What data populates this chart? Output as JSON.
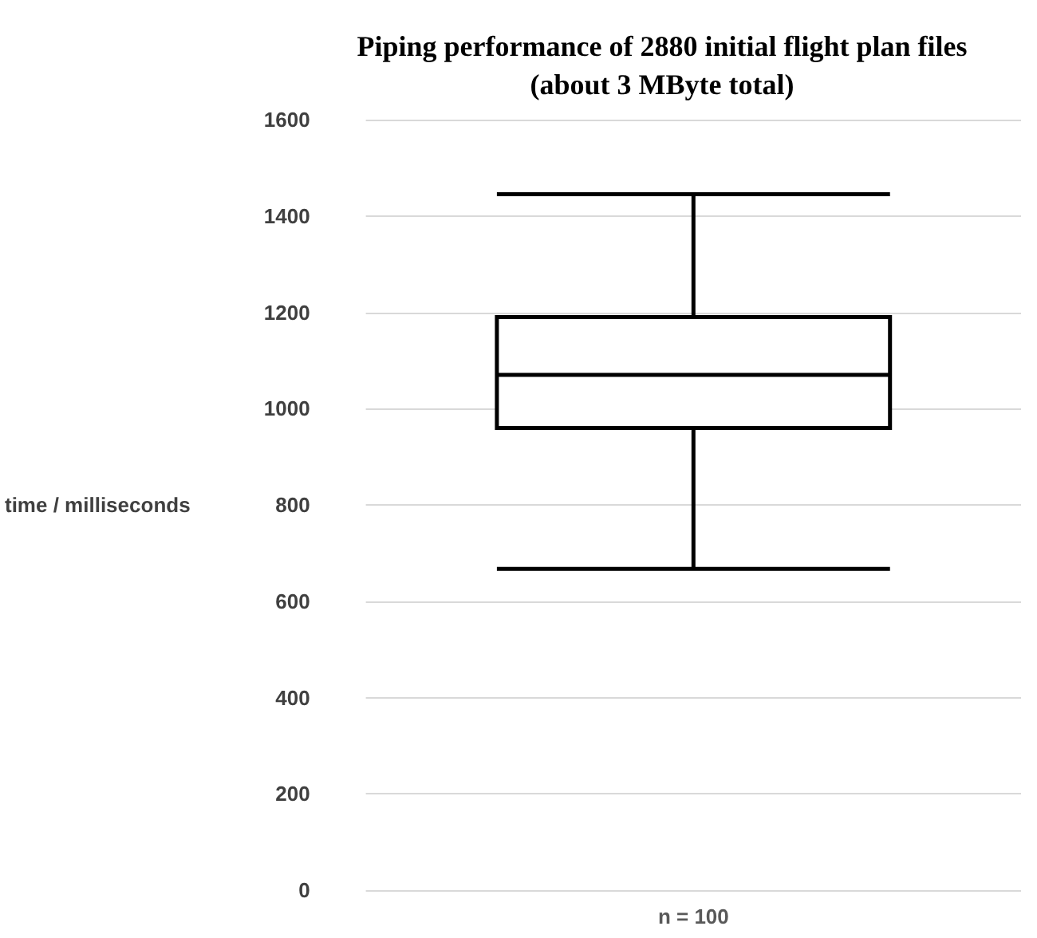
{
  "chart_data": {
    "type": "box",
    "title": "Piping performance of 2880 initial flight plan files\n(about 3 MByte total)",
    "ylabel": "time / milliseconds",
    "categories": [
      "n = 100"
    ],
    "boxes": [
      {
        "low": 667,
        "q1": 960,
        "median": 1070,
        "q3": 1190,
        "high": 1445
      }
    ],
    "color": "#000000",
    "ylim": [
      0,
      1600
    ],
    "yticks": [
      0,
      200,
      400,
      600,
      800,
      1000,
      1200,
      1400,
      1600
    ],
    "grid": "y"
  }
}
